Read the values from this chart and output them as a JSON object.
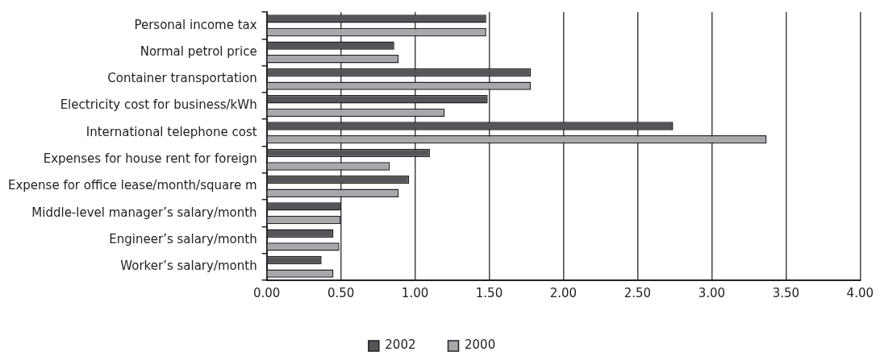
{
  "chart_data": {
    "type": "bar",
    "orientation": "horizontal",
    "categories": [
      "Personal income tax",
      "Normal petrol price",
      "Container transportation",
      "Electricity cost for business/kWh",
      "International telephone cost",
      "Expenses for house rent for foreign",
      "Expense for office lease/month/square m",
      "Middle-level manager’s salary/month",
      "Engineer’s salary/month",
      "Worker’s salary/month"
    ],
    "series": [
      {
        "name": "2002",
        "color": "#555559",
        "values": [
          1.48,
          0.86,
          1.78,
          1.49,
          2.74,
          1.1,
          0.96,
          0.5,
          0.45,
          0.37
        ]
      },
      {
        "name": "2000",
        "color": "#a7a8ab",
        "values": [
          1.48,
          0.89,
          1.78,
          1.2,
          3.37,
          0.83,
          0.89,
          0.5,
          0.49,
          0.45
        ]
      }
    ],
    "xlim": [
      0,
      4
    ],
    "xticks": [
      {
        "value": 0,
        "label": "0.00"
      },
      {
        "value": 0.5,
        "label": "0.50"
      },
      {
        "value": 1,
        "label": "1.00"
      },
      {
        "value": 1.5,
        "label": "1.50"
      },
      {
        "value": 2,
        "label": "2.00"
      },
      {
        "value": 2.5,
        "label": "2.50"
      },
      {
        "value": 3,
        "label": "3.00"
      },
      {
        "value": 3.5,
        "label": "3.50"
      },
      {
        "value": 4,
        "label": "4.00"
      }
    ],
    "grid": "x",
    "legend": "bottom"
  }
}
